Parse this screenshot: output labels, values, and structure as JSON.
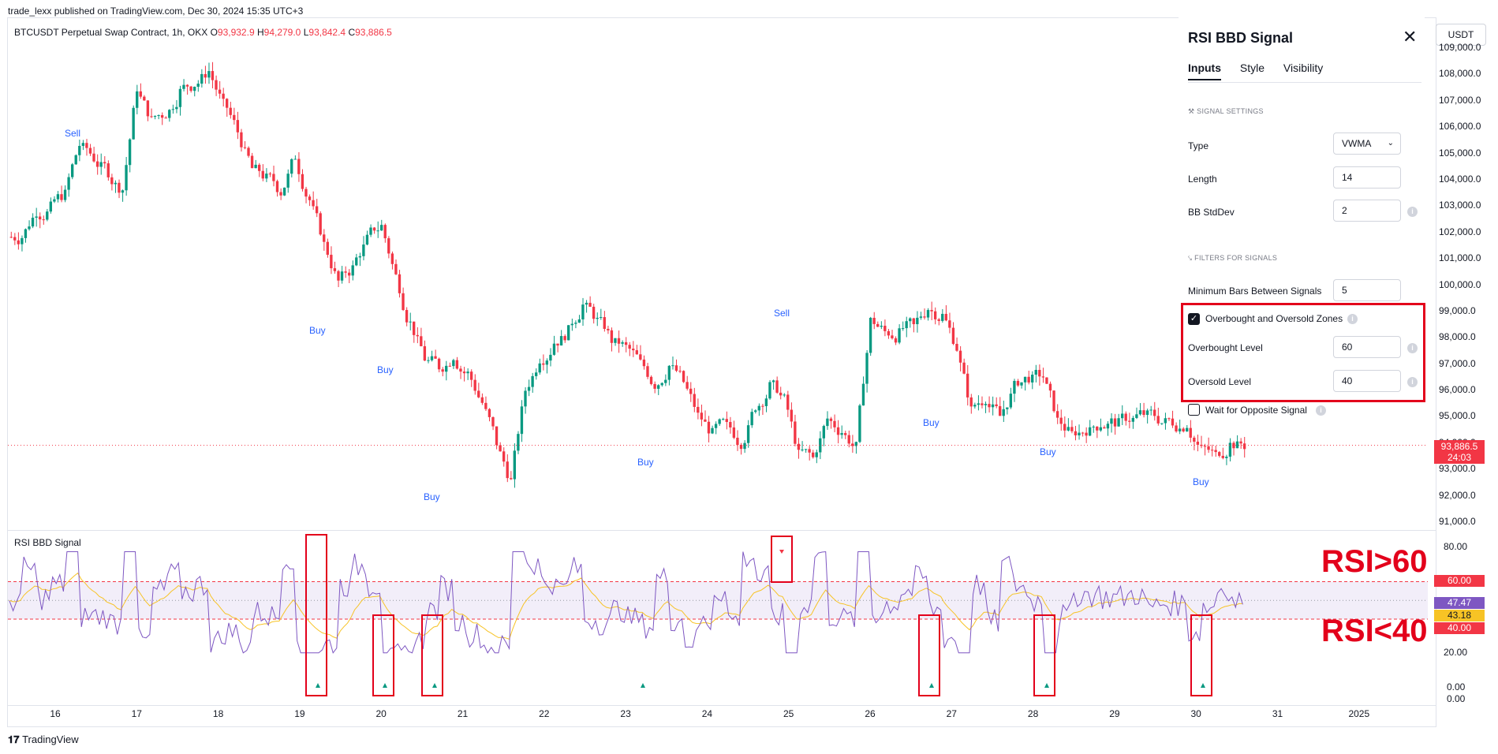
{
  "header": {
    "text": "trade_lexx published on TradingView.com, Dec 30, 2024 15:35 UTC+3"
  },
  "legend": {
    "symbol": "BTCUSDT Perpetual Swap Contract, 1h, OKX",
    "o_label": "O",
    "o": "93,932.9",
    "h_label": "H",
    "h": "94,279.0",
    "l_label": "L",
    "l": "93,842.4",
    "c_label": "C",
    "c": "93,886.5"
  },
  "currency_button": "USDT",
  "price_axis": [
    "109,000.0",
    "108,000.0",
    "107,000.0",
    "106,000.0",
    "105,000.0",
    "104,000.0",
    "103,000.0",
    "102,000.0",
    "101,000.0",
    "100,000.0",
    "99,000.0",
    "98,000.0",
    "97,000.0",
    "96,000.0",
    "95,000.0",
    "94,000.0",
    "93,000.0",
    "92,000.0",
    "91,000.0"
  ],
  "current_price": {
    "value": "93,886.5",
    "countdown": "24:03"
  },
  "rsi_axis": [
    "80.00",
    "20.00",
    "0.00",
    "0.00"
  ],
  "rsi_levels": {
    "upper": "60.00",
    "rsi": "47.47",
    "ma": "43.18",
    "lower": "40.00"
  },
  "x_axis": [
    "16",
    "17",
    "18",
    "19",
    "20",
    "21",
    "22",
    "23",
    "24",
    "25",
    "26",
    "27",
    "28",
    "29",
    "30",
    "31",
    "2025"
  ],
  "signals": [
    {
      "label": "Sell"
    },
    {
      "label": "Buy"
    },
    {
      "label": "Buy"
    },
    {
      "label": "Buy"
    },
    {
      "label": "Buy"
    },
    {
      "label": "Sell"
    },
    {
      "label": "Buy"
    },
    {
      "label": "Buy"
    },
    {
      "label": "Buy"
    }
  ],
  "settings_panel": {
    "title": "RSI BBD Signal",
    "tabs": [
      "Inputs",
      "Style",
      "Visibility"
    ],
    "active_tab": "Inputs",
    "signal_section": "SIGNAL SETTINGS",
    "type_label": "Type",
    "type_value": "VWMA",
    "length_label": "Length",
    "length_value": "14",
    "bb_label": "BB StdDev",
    "bb_value": "2",
    "filters_section": "FILTERS FOR SIGNALS",
    "min_bars_label": "Minimum Bars Between Signals",
    "min_bars_value": "5",
    "ob_os_label": "Overbought and Oversold Zones",
    "ob_os_checked": true,
    "ob_label": "Overbought Level",
    "ob_value": "60",
    "os_label": "Oversold Level",
    "os_value": "40",
    "wait_label": "Wait for Opposite Signal",
    "wait_checked": false
  },
  "indicator_title": "RSI BBD Signal",
  "annotations": {
    "upper": "RSI>60",
    "lower": "RSI<40"
  },
  "footer": "TradingView",
  "colors": {
    "up": "#089981",
    "down": "#f23645",
    "rsi": "#7e57c2",
    "ma": "#f7c325",
    "signal": "#2962ff",
    "annotation": "#e3001b"
  },
  "chart_data": {
    "type": "candlestick",
    "ylim": [
      91000,
      109000
    ],
    "close_series_approx": [
      101800,
      102800,
      102900,
      103400,
      105300,
      104800,
      104300,
      103600,
      107500,
      106200,
      106500,
      107300,
      107600,
      108100,
      106800,
      105800,
      104400,
      104000,
      103500,
      104900,
      103200,
      101500,
      100100,
      100600,
      101700,
      102200,
      100300,
      98500,
      97200,
      96900,
      97300,
      96600,
      95500,
      94000,
      92500,
      96000,
      97200,
      97800,
      98200,
      99200,
      98600,
      97900,
      97600,
      97000,
      96200,
      96900,
      96300,
      95000,
      94300,
      94600,
      94000,
      95400,
      96100,
      95600,
      93500,
      93400,
      94900,
      94400,
      93800,
      98600,
      98200,
      98100,
      98400,
      99100,
      98800,
      97600,
      95200,
      95700,
      95000,
      96100,
      96500,
      96500,
      94800,
      94300,
      94500,
      94700,
      94800,
      94900,
      95100,
      94900,
      94800,
      94700,
      93700,
      93500,
      93900,
      93900
    ],
    "rsi_ylim": [
      0,
      80
    ],
    "rsi_levels": {
      "upper": 60,
      "lower": 40
    },
    "rsi_last": 47.47,
    "rsi_ma_last": 43.18
  }
}
